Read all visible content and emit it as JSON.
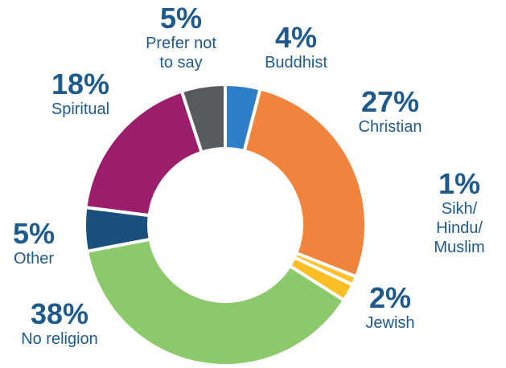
{
  "chart_data": {
    "type": "donut",
    "slices": [
      {
        "label": "Buddhist",
        "value": 4,
        "color": "#2e7fc7"
      },
      {
        "label": "Christian",
        "value": 27,
        "color": "#f0843c"
      },
      {
        "label": "Sikh/ Hindu/ Muslim",
        "value": 1,
        "color": "#ffc12e"
      },
      {
        "label": "Jewish",
        "value": 2,
        "color": "#fbbf24"
      },
      {
        "label": "No religion",
        "value": 38,
        "color": "#8cc96a"
      },
      {
        "label": "Other",
        "value": 5,
        "color": "#1a4f7e"
      },
      {
        "label": "Spiritual",
        "value": 18,
        "color": "#9c1d6b"
      },
      {
        "label": "Prefer not to say",
        "value": 5,
        "color": "#575b5d"
      }
    ],
    "start_angle": 0,
    "direction": "clockwise"
  },
  "labels": {
    "buddhist": {
      "pct": "4%",
      "lines": [
        "Buddhist"
      ]
    },
    "christian": {
      "pct": "27%",
      "lines": [
        "Christian"
      ]
    },
    "sikh": {
      "pct": "1%",
      "lines": [
        "Sikh/",
        "Hindu/",
        "Muslim"
      ]
    },
    "jewish": {
      "pct": "2%",
      "lines": [
        "Jewish"
      ]
    },
    "noreligion": {
      "pct": "38%",
      "lines": [
        "No religion"
      ]
    },
    "other": {
      "pct": "5%",
      "lines": [
        "Other"
      ]
    },
    "spiritual": {
      "pct": "18%",
      "lines": [
        "Spiritual"
      ]
    },
    "prefer": {
      "pct": "5%",
      "lines": [
        "Prefer not",
        "to say"
      ]
    }
  }
}
